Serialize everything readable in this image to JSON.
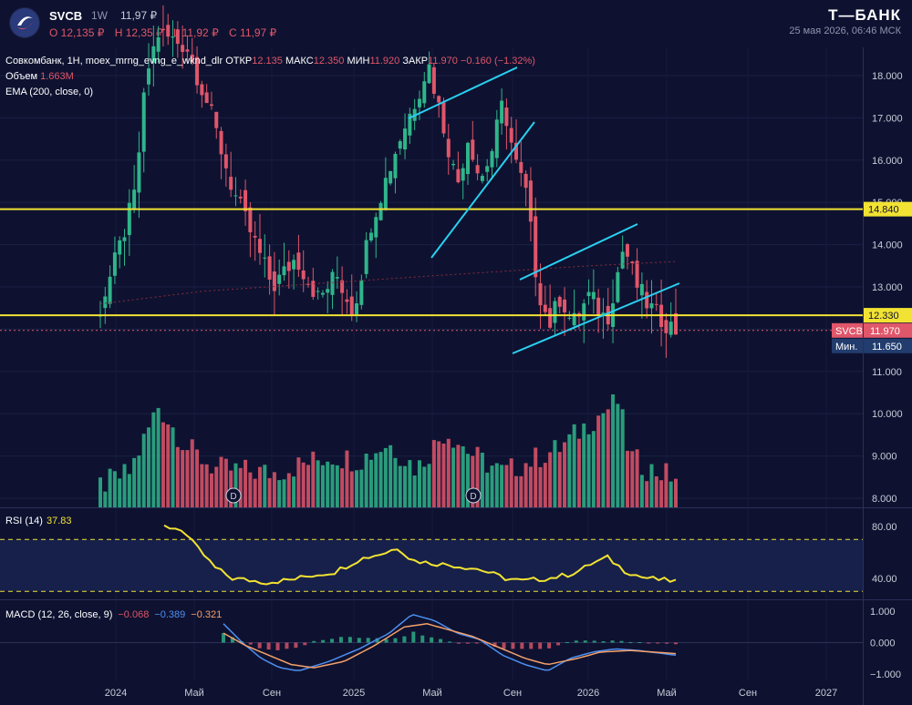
{
  "header": {
    "ticker": "SVCB",
    "timeframe": "1W",
    "last_price": "11,97 ₽",
    "ohlc": {
      "o": "O 12,135 ₽",
      "h": "H 12,35 ₽",
      "l": "L 11,92 ₽",
      "c": "C 11,97 ₽"
    },
    "brand": "Т—БАНК",
    "datetime": "25 мая 2026, 06:46 МСК"
  },
  "legend": {
    "title": "Совкомбанк, 1Н, moex_mrng_evng_e_wknd_dlr",
    "open_label": "ОТКР",
    "open": "12.135",
    "high_label": "МАКС",
    "high": "12.350",
    "low_label": "МИН",
    "low": "11.920",
    "close_label": "ЗАКР",
    "close": "11.970",
    "change": "−0.160 (−1.32%)",
    "volume_label": "Объем",
    "volume": "1.663M",
    "ema": "EMA (200, close, 0)"
  },
  "rsi": {
    "label": "RSI (14)",
    "value": "37.83"
  },
  "macd": {
    "label": "MACD (12, 26, close, 9)",
    "v1": "−0.068",
    "v2": "−0.389",
    "v3": "−0.321"
  },
  "colors": {
    "background": "#0e1230",
    "up": "#2fb58a",
    "down": "#e0566a",
    "level": "#f2e233",
    "trendline": "#2ad0f0",
    "rsi_line": "#f2e233",
    "macd_line": "#4d8ff0",
    "signal_line": "#f5a06a"
  },
  "chart_data": {
    "type": "candlestick",
    "price_axis": {
      "ticks": [
        "18.000",
        "17.000",
        "16.000",
        "15.000",
        "14.000",
        "13.000",
        "12.000",
        "11.000",
        "10.000",
        "9.000",
        "8.000"
      ],
      "ylim": [
        7.6,
        18.6
      ]
    },
    "x_ticks": [
      "2024",
      "Май",
      "Сен",
      "2025",
      "Май",
      "Сен",
      "2026",
      "Май",
      "Сен",
      "2027"
    ],
    "levels": [
      {
        "value": 14.84,
        "label": "14.840"
      },
      {
        "value": 12.33,
        "label": "12.330"
      }
    ],
    "last_tag": {
      "symbol": "SVCB",
      "value": "11.970"
    },
    "min_tag": {
      "label": "Мин.",
      "value": "11.650"
    },
    "dividend_markers": [
      "D",
      "D"
    ],
    "rsi_axis": {
      "ticks": [
        "80.00",
        "40.00"
      ],
      "bands": [
        70,
        30
      ]
    },
    "macd_axis": {
      "ticks": [
        "1.000",
        "0.000",
        "−1.000"
      ]
    },
    "ema_keypoints": [
      [
        0,
        12.6
      ],
      [
        0.18,
        12.9
      ],
      [
        0.4,
        13.1
      ],
      [
        0.62,
        13.3
      ],
      [
        0.85,
        13.5
      ],
      [
        1,
        13.6
      ]
    ],
    "price_keypoints": [
      [
        0,
        12.5
      ],
      [
        0.035,
        14.0
      ],
      [
        0.06,
        15.2
      ],
      [
        0.08,
        18.0
      ],
      [
        0.1,
        19.0
      ],
      [
        0.15,
        18.7
      ],
      [
        0.19,
        17.2
      ],
      [
        0.23,
        15.3
      ],
      [
        0.27,
        14.0
      ],
      [
        0.3,
        13.0
      ],
      [
        0.34,
        13.7
      ],
      [
        0.38,
        12.7
      ],
      [
        0.41,
        13.3
      ],
      [
        0.44,
        12.4
      ],
      [
        0.47,
        14.5
      ],
      [
        0.52,
        16.5
      ],
      [
        0.55,
        17.5
      ],
      [
        0.57,
        18.3
      ],
      [
        0.6,
        16.6
      ],
      [
        0.62,
        15.4
      ],
      [
        0.64,
        16.6
      ],
      [
        0.66,
        15.5
      ],
      [
        0.68,
        16.2
      ],
      [
        0.7,
        17.4
      ],
      [
        0.72,
        16.0
      ],
      [
        0.74,
        15.2
      ],
      [
        0.76,
        13.0
      ],
      [
        0.78,
        12.1
      ],
      [
        0.8,
        12.8
      ],
      [
        0.82,
        12.1
      ],
      [
        0.85,
        12.8
      ],
      [
        0.88,
        12.2
      ],
      [
        0.91,
        14.0
      ],
      [
        0.93,
        13.1
      ],
      [
        0.95,
        12.6
      ],
      [
        0.97,
        12.3
      ],
      [
        1,
        11.97
      ]
    ],
    "volume_keypoints": [
      [
        0,
        8.3
      ],
      [
        0.05,
        8.6
      ],
      [
        0.08,
        9.5
      ],
      [
        0.1,
        10.2
      ],
      [
        0.15,
        9.2
      ],
      [
        0.2,
        8.7
      ],
      [
        0.3,
        8.6
      ],
      [
        0.35,
        8.8
      ],
      [
        0.4,
        9.0
      ],
      [
        0.45,
        8.9
      ],
      [
        0.5,
        9.3
      ],
      [
        0.55,
        8.7
      ],
      [
        0.6,
        9.6
      ],
      [
        0.65,
        9.0
      ],
      [
        0.7,
        8.6
      ],
      [
        0.75,
        8.9
      ],
      [
        0.8,
        9.2
      ],
      [
        0.85,
        9.8
      ],
      [
        0.9,
        10.3
      ],
      [
        0.92,
        9.0
      ],
      [
        0.95,
        8.7
      ],
      [
        1,
        8.5
      ]
    ],
    "rsi_keypoints": [
      [
        0,
        80
      ],
      [
        0.04,
        78
      ],
      [
        0.06,
        70
      ],
      [
        0.12,
        48
      ],
      [
        0.16,
        40
      ],
      [
        0.24,
        37
      ],
      [
        0.3,
        39
      ],
      [
        0.34,
        42
      ],
      [
        0.4,
        45
      ],
      [
        0.46,
        55
      ],
      [
        0.52,
        60
      ],
      [
        0.55,
        64
      ],
      [
        0.58,
        54
      ],
      [
        0.62,
        52
      ],
      [
        0.68,
        50
      ],
      [
        0.74,
        47
      ],
      [
        0.8,
        40
      ],
      [
        0.84,
        38
      ],
      [
        0.9,
        40
      ],
      [
        0.95,
        43
      ],
      [
        0.98,
        47
      ],
      [
        1.0,
        51
      ],
      [
        1.04,
        56
      ],
      [
        1.08,
        46
      ],
      [
        1.12,
        41
      ],
      [
        1.16,
        39
      ],
      [
        1.2,
        38
      ]
    ],
    "macd_keypoints": [
      [
        0,
        0.6
      ],
      [
        0.05,
        0.0
      ],
      [
        0.1,
        -0.5
      ],
      [
        0.15,
        -0.8
      ],
      [
        0.2,
        -0.9
      ],
      [
        0.28,
        -0.6
      ],
      [
        0.36,
        -0.2
      ],
      [
        0.44,
        0.3
      ],
      [
        0.5,
        0.9
      ],
      [
        0.56,
        0.7
      ],
      [
        0.62,
        0.3
      ],
      [
        0.68,
        0.1
      ],
      [
        0.74,
        -0.4
      ],
      [
        0.8,
        -0.7
      ],
      [
        0.86,
        -0.9
      ],
      [
        0.92,
        -0.5
      ],
      [
        0.98,
        -0.3
      ],
      [
        1.04,
        -0.2
      ],
      [
        1.1,
        -0.25
      ],
      [
        1.2,
        -0.4
      ]
    ],
    "signal_keypoints": [
      [
        0,
        0.3
      ],
      [
        0.06,
        -0.1
      ],
      [
        0.12,
        -0.4
      ],
      [
        0.18,
        -0.7
      ],
      [
        0.24,
        -0.8
      ],
      [
        0.32,
        -0.6
      ],
      [
        0.4,
        -0.1
      ],
      [
        0.48,
        0.5
      ],
      [
        0.54,
        0.6
      ],
      [
        0.6,
        0.4
      ],
      [
        0.66,
        0.2
      ],
      [
        0.72,
        -0.1
      ],
      [
        0.8,
        -0.5
      ],
      [
        0.86,
        -0.7
      ],
      [
        0.94,
        -0.5
      ],
      [
        1.0,
        -0.3
      ],
      [
        1.08,
        -0.25
      ],
      [
        1.2,
        -0.35
      ]
    ]
  }
}
